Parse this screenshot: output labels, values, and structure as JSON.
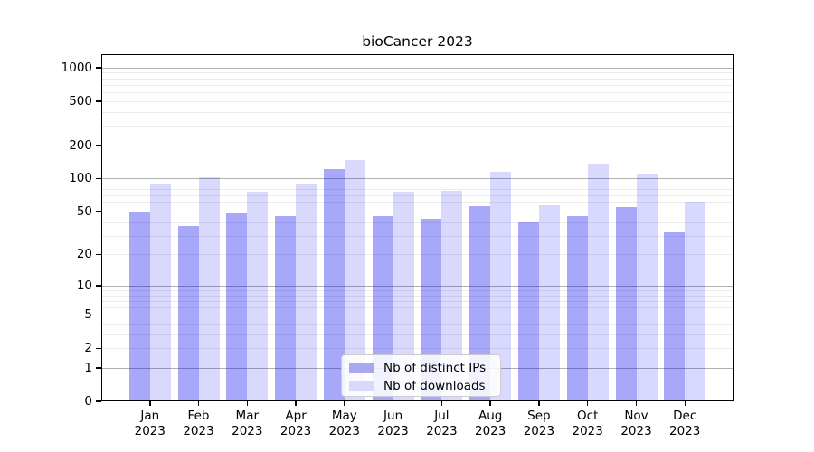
{
  "chart_data": {
    "type": "bar",
    "title": "bioCancer 2023",
    "categories": [
      {
        "month": "Jan",
        "year": "2023"
      },
      {
        "month": "Feb",
        "year": "2023"
      },
      {
        "month": "Mar",
        "year": "2023"
      },
      {
        "month": "Apr",
        "year": "2023"
      },
      {
        "month": "May",
        "year": "2023"
      },
      {
        "month": "Jun",
        "year": "2023"
      },
      {
        "month": "Jul",
        "year": "2023"
      },
      {
        "month": "Aug",
        "year": "2023"
      },
      {
        "month": "Sep",
        "year": "2023"
      },
      {
        "month": "Oct",
        "year": "2023"
      },
      {
        "month": "Nov",
        "year": "2023"
      },
      {
        "month": "Dec",
        "year": "2023"
      }
    ],
    "series": [
      {
        "name": "Nb of distinct IPs",
        "color_hex": "#a8a8f0",
        "fill_rgba": "rgba(0,0,240,0.34)",
        "values": [
          50,
          37,
          48,
          45,
          122,
          45,
          43,
          56,
          40,
          45,
          55,
          32
        ]
      },
      {
        "name": "Nb of downloads",
        "color_hex": "#d9d9f9",
        "fill_rgba": "rgba(0,0,240,0.15)",
        "values": [
          90,
          102,
          76,
          90,
          148,
          76,
          77,
          115,
          57,
          137,
          109,
          60
        ]
      }
    ],
    "yscale": "log1p",
    "ylim": [
      0,
      1320
    ],
    "yticks": [
      0,
      1,
      2,
      5,
      10,
      20,
      50,
      100,
      200,
      500,
      1000
    ],
    "xlabel": "",
    "ylabel": "",
    "grid": {
      "major_lines": [
        1,
        10,
        100,
        1000
      ],
      "minor_per_decade": [
        2,
        3,
        4,
        5,
        6,
        7,
        8,
        9
      ],
      "major_color": "#b0b0b0",
      "minor_color": "#ebebeb"
    },
    "legend": {
      "position": "lower center"
    }
  }
}
